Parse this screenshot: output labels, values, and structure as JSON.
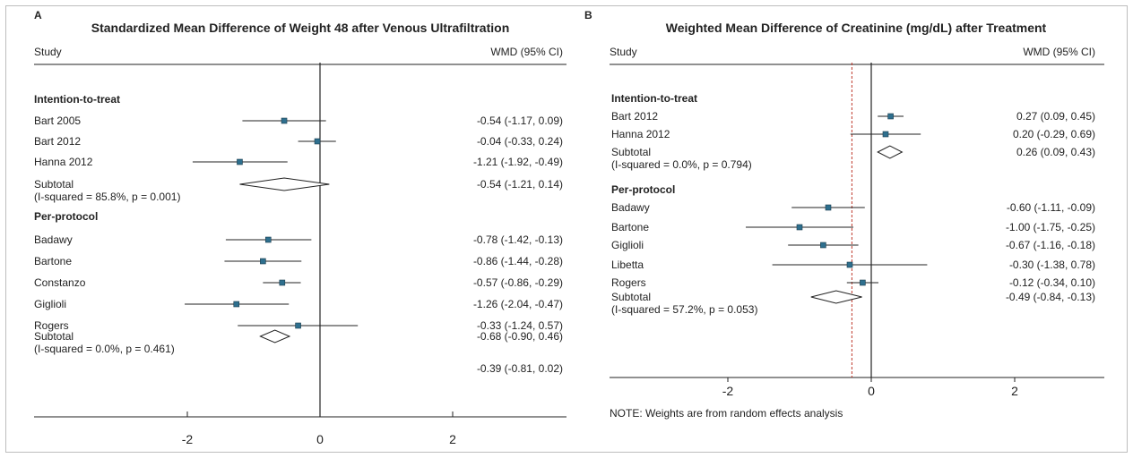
{
  "chart_data": [
    {
      "type": "forest",
      "panel_label": "A",
      "title": "Standardized Mean Difference of Weight 48 after Venous Ultrafiltration",
      "col_study": "Study",
      "col_effect": "WMD (95% CI)",
      "xticks": [
        -2,
        0,
        2
      ],
      "xlim": [
        -4.2,
        4.0
      ],
      "note": "",
      "ref_line": null,
      "rows": [
        {
          "kind": "header",
          "label": "Intention-to-treat"
        },
        {
          "kind": "study",
          "label": "Bart 2005",
          "est": -0.54,
          "lo": -1.17,
          "hi": 0.09,
          "ci": "-0.54 (-1.17, 0.09)"
        },
        {
          "kind": "study",
          "label": "Bart 2012",
          "est": -0.04,
          "lo": -0.33,
          "hi": 0.24,
          "ci": "-0.04 (-0.33, 0.24)"
        },
        {
          "kind": "study",
          "label": "Hanna 2012",
          "est": -1.21,
          "lo": -1.92,
          "hi": -0.49,
          "ci": "-1.21 (-1.92, -0.49)"
        },
        {
          "kind": "subtotal",
          "label": "Subtotal",
          "het": "(I-squared = 85.8%, p = 0.001)",
          "est": -0.54,
          "lo": -1.21,
          "hi": 0.14,
          "ci": "-0.54 (-1.21, 0.14)"
        },
        {
          "kind": "header",
          "label": "Per-protocol"
        },
        {
          "kind": "study",
          "label": "Badawy",
          "est": -0.78,
          "lo": -1.42,
          "hi": -0.13,
          "ci": "-0.78 (-1.42, -0.13)"
        },
        {
          "kind": "study",
          "label": "Bartone",
          "est": -0.86,
          "lo": -1.44,
          "hi": -0.28,
          "ci": "-0.86 (-1.44, -0.28)"
        },
        {
          "kind": "study",
          "label": "Constanzo",
          "est": -0.57,
          "lo": -0.86,
          "hi": -0.29,
          "ci": "-0.57 (-0.86, -0.29)"
        },
        {
          "kind": "study",
          "label": "Giglioli",
          "est": -1.26,
          "lo": -2.04,
          "hi": -0.47,
          "ci": "-1.26 (-2.04, -0.47)"
        },
        {
          "kind": "study",
          "label": "Rogers",
          "est": -0.33,
          "lo": -1.24,
          "hi": 0.57,
          "ci": "-0.33 (-1.24, 0.57)"
        },
        {
          "kind": "subtotal",
          "label": "Subtotal",
          "het": "(I-squared = 0.0%, p = 0.461)",
          "est": -0.68,
          "lo": -0.9,
          "hi": -0.46,
          "ci": "-0.68 (-0.90, 0.46)"
        },
        {
          "kind": "overall",
          "label": "",
          "est": -0.39,
          "lo": -0.81,
          "hi": 0.02,
          "ci": "-0.39 (-0.81, 0.02)"
        }
      ]
    },
    {
      "type": "forest",
      "panel_label": "B",
      "title": "Weighted Mean Difference of Creatinine (mg/dL) after Treatment",
      "col_study": "Study",
      "col_effect": "WMD (95% CI)",
      "xticks": [
        -2,
        0,
        2
      ],
      "xlim": [
        -3.6,
        3.6
      ],
      "note": "NOTE: Weights are from random effects analysis",
      "ref_line": -0.27,
      "ref_color": "#c0392b",
      "rows": [
        {
          "kind": "header",
          "label": "Intention-to-treat"
        },
        {
          "kind": "study",
          "label": "Bart 2012",
          "est": 0.27,
          "lo": 0.09,
          "hi": 0.45,
          "ci": "0.27 (0.09, 0.45)"
        },
        {
          "kind": "study",
          "label": "Hanna 2012",
          "est": 0.2,
          "lo": -0.29,
          "hi": 0.69,
          "ci": "0.20 (-0.29, 0.69)"
        },
        {
          "kind": "subtotal",
          "label": "Subtotal",
          "het": "(I-squared = 0.0%, p = 0.794)",
          "est": 0.26,
          "lo": 0.09,
          "hi": 0.43,
          "ci": "0.26 (0.09, 0.43)"
        },
        {
          "kind": "header",
          "label": "Per-protocol"
        },
        {
          "kind": "study",
          "label": "Badawy",
          "est": -0.6,
          "lo": -1.11,
          "hi": -0.09,
          "ci": "-0.60 (-1.11, -0.09)"
        },
        {
          "kind": "study",
          "label": "Bartone",
          "est": -1.0,
          "lo": -1.75,
          "hi": -0.25,
          "ci": "-1.00 (-1.75, -0.25)"
        },
        {
          "kind": "study",
          "label": "Giglioli",
          "est": -0.67,
          "lo": -1.16,
          "hi": -0.18,
          "ci": "-0.67 (-1.16, -0.18)"
        },
        {
          "kind": "study",
          "label": "Libetta",
          "est": -0.3,
          "lo": -1.38,
          "hi": 0.78,
          "ci": "-0.30 (-1.38, 0.78)"
        },
        {
          "kind": "study",
          "label": "Rogers",
          "est": -0.12,
          "lo": -0.34,
          "hi": 0.1,
          "ci": "-0.12 (-0.34, 0.10)"
        },
        {
          "kind": "subtotal",
          "label": "Subtotal",
          "het": "(I-squared = 57.2%, p = 0.053)",
          "est": -0.49,
          "lo": -0.84,
          "hi": -0.13,
          "ci": "-0.49 (-0.84, -0.13)"
        }
      ]
    }
  ],
  "colors": {
    "marker": "#2e6f8e",
    "marker_edge": "#1c3d4d",
    "line": "#222222",
    "frame": "#bdbdbd"
  }
}
